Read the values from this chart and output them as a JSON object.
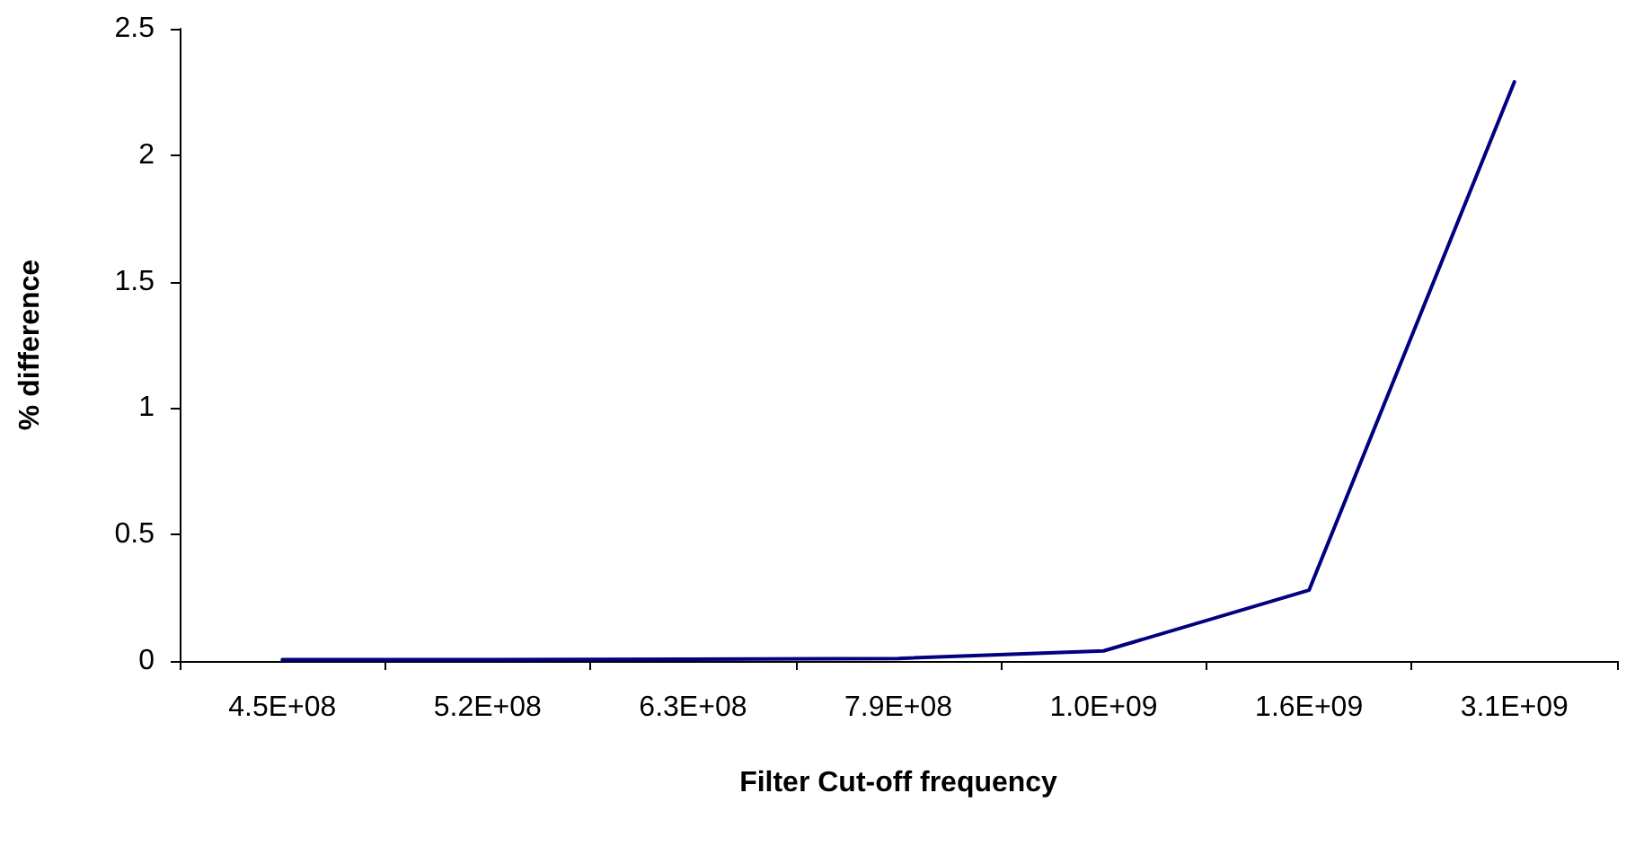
{
  "chart_data": {
    "type": "line",
    "xlabel": "Filter Cut-off frequency",
    "ylabel": "% difference",
    "categories": [
      "4.5E+08",
      "5.2E+08",
      "6.3E+08",
      "7.9E+08",
      "1.0E+09",
      "1.6E+09",
      "3.1E+09"
    ],
    "series": [
      {
        "color": "#000080",
        "values": [
          0.005,
          0.005,
          0.007,
          0.01,
          0.04,
          0.28,
          2.29
        ]
      }
    ],
    "ylim": [
      0,
      2.5
    ],
    "yticks": [
      0,
      0.5,
      1,
      1.5,
      2,
      2.5
    ],
    "grid": false,
    "marker": "none",
    "line_style": "solid"
  }
}
